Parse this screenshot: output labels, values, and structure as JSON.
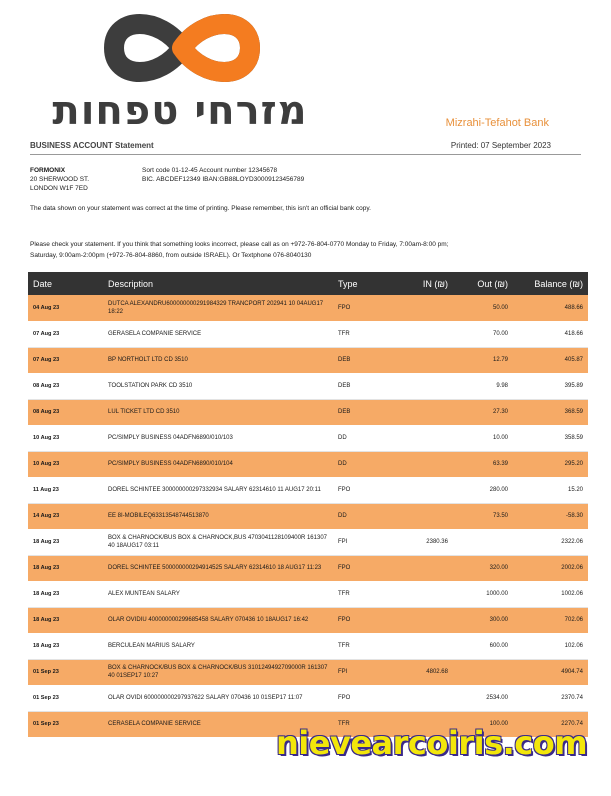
{
  "header": {
    "logo_text": "מזרחי טפחות",
    "bank_name": "Mizrahi-Tefahot Bank",
    "statement_title": "BUSINESS ACCOUNT Statement",
    "printed": "Printed: 07 September 2023"
  },
  "account": {
    "company": "FORMONIX",
    "address1": "20 SHERWOOD ST.",
    "address2": "LONDON W1F 7ED",
    "sort_line": "Sort code 01-12-45  Account number 12345678",
    "bic_line": "BIC. ABCDEF12349  IBAN:GB88LOYD30009123456789"
  },
  "notices": {
    "line1": "The data shown on your statement was correct at the time of printing. Please remember, this isn't an official bank copy.",
    "line2": "Please check your statement. If you think that something looks incorrect, please call as on +972-76-804-0770 Monday to Friday, 7:00am-8:00 pm; Saturday, 9:00am-2:00pm (+972-76-804-8860, from outside ISRAEL). Or Textphone 076-8040130"
  },
  "table": {
    "headers": {
      "date": "Date",
      "description": "Description",
      "type": "Type",
      "in": "IN (₪)",
      "out": "Out (₪)",
      "balance": "Balance (₪)"
    },
    "rows": [
      {
        "date": "04 Aug 23",
        "description": "DUTCA ALEXANDRU600000000291984329 TRANCPORT 202941 10 04AUG17 18:22",
        "type": "FPO",
        "in": "",
        "out": "50.00",
        "balance": "488.66"
      },
      {
        "date": "07 Aug 23",
        "description": "GERASELA COMPANIE SERVICE",
        "type": "TFR",
        "in": "",
        "out": "70.00",
        "balance": "418.66"
      },
      {
        "date": "07 Aug 23",
        "description": "BP NORTHOLT LTD CD 3510",
        "type": "DEB",
        "in": "",
        "out": "12.79",
        "balance": "405.87"
      },
      {
        "date": "08 Aug 23",
        "description": "TOOLSTATION PARK CD 3510",
        "type": "DEB",
        "in": "",
        "out": "9.98",
        "balance": "395.89"
      },
      {
        "date": "08 Aug 23",
        "description": "LUL TICKET LTD CD 3510",
        "type": "DEB",
        "in": "",
        "out": "27.30",
        "balance": "368.59"
      },
      {
        "date": "10 Aug 23",
        "description": "PC/SIMPLY BUSINESS 04ADFN6890/010/103",
        "type": "DD",
        "in": "",
        "out": "10.00",
        "balance": "358.59"
      },
      {
        "date": "10 Aug 23",
        "description": "PC/SIMPLY BUSINESS 04ADFN6890/010/104",
        "type": "DD",
        "in": "",
        "out": "63.39",
        "balance": "295.20"
      },
      {
        "date": "11 Aug 23",
        "description": "DOREL SCHINTEE 300000000297332934 SALARY 62314610 11 AUG17 20:11",
        "type": "FPO",
        "in": "",
        "out": "280.00",
        "balance": "15.20"
      },
      {
        "date": "14 Aug 23",
        "description": "EE 8I-MOBILEQ63313548744513870",
        "type": "DD",
        "in": "",
        "out": "73.50",
        "balance": "-58.30"
      },
      {
        "date": "18 Aug 23",
        "description": "BOX & CHARNOCK/BUS BOX & CHARNOCK,BUS 4703041128109400R 161307 40 18AUG17 03:11",
        "type": "FPI",
        "in": "2380.36",
        "out": "",
        "balance": "2322.06"
      },
      {
        "date": "18 Aug 23",
        "description": "DOREL SCHINTEE 500000000294914525 SALARY 62314610 18 AUG17 11:23",
        "type": "FPO",
        "in": "",
        "out": "320.00",
        "balance": "2002.06"
      },
      {
        "date": "18 Aug 23",
        "description": "ALEX MUNTEAN SALARY",
        "type": "TFR",
        "in": "",
        "out": "1000.00",
        "balance": "1002.06"
      },
      {
        "date": "18 Aug 23",
        "description": "OLAR OVIDIU 400000000299685458 SALARY 070436 10 18AUG17 16:42",
        "type": "FPO",
        "in": "",
        "out": "300.00",
        "balance": "702.06"
      },
      {
        "date": "18 Aug 23",
        "description": "BERCULEAN MARIUS SALARY",
        "type": "TFR",
        "in": "",
        "out": "600.00",
        "balance": "102.06"
      },
      {
        "date": "01 Sep 23",
        "description": "BOX & CHARNOCK/BUS BOX & CHARNOCK/BUS 3101249492709000R 161307 40 01SEP17 10:27",
        "type": "FPI",
        "in": "4802.68",
        "out": "",
        "balance": "4904.74"
      },
      {
        "date": "01 Sep 23",
        "description": "OLAR OVIDI 600000000297937622 SALARY 070436 10 01SEP17 11:07",
        "type": "FPO",
        "in": "",
        "out": "2534.00",
        "balance": "2370.74"
      },
      {
        "date": "01 Sep 23",
        "description": "CERASELA COMPANIE SERVICE",
        "type": "TFR",
        "in": "",
        "out": "100.00",
        "balance": "2270.74"
      }
    ]
  },
  "watermark": "nievearcoiris.com",
  "colors": {
    "accent_orange": "#f6aa66",
    "logo_orange": "#f47c20",
    "logo_grey": "#3d3d3d",
    "header_dark": "#333333"
  }
}
